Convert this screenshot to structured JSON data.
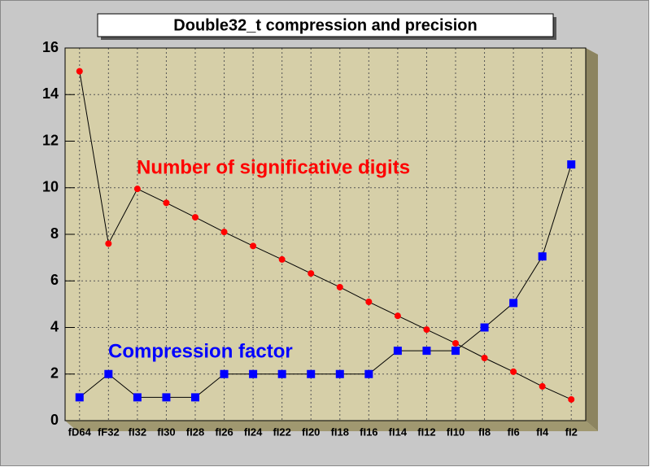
{
  "chart_data": {
    "type": "line",
    "title": "Double32_t compression and precision",
    "categories": [
      "fD64",
      "fF32",
      "fI32",
      "fI30",
      "fI28",
      "fI26",
      "fI24",
      "fI22",
      "fI20",
      "fI18",
      "fI16",
      "fI14",
      "fI12",
      "fI10",
      "fI8",
      "fI6",
      "fI4",
      "fI2"
    ],
    "series": [
      {
        "name": "Number of significative digits",
        "color": "#ff0000",
        "marker": "circle",
        "values": [
          15,
          7.6,
          9.95,
          9.35,
          8.73,
          8.1,
          7.5,
          6.92,
          6.32,
          5.73,
          5.1,
          4.5,
          3.91,
          3.32,
          2.69,
          2.1,
          1.47,
          0.91
        ]
      },
      {
        "name": "Compression factor",
        "color": "#0000ff",
        "marker": "square",
        "values": [
          1,
          2,
          1,
          1,
          1,
          2,
          2,
          2,
          2,
          2,
          2,
          3,
          3,
          3,
          4,
          5.05,
          7.05,
          11
        ]
      }
    ],
    "ylim": [
      0,
      16
    ],
    "yticks": [
      0,
      2,
      4,
      6,
      8,
      10,
      12,
      14,
      16
    ],
    "grid": true
  }
}
